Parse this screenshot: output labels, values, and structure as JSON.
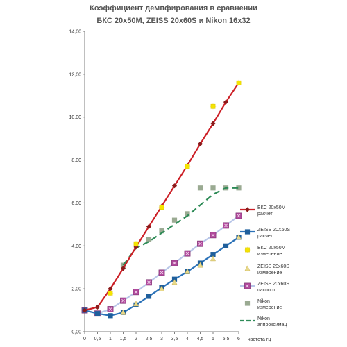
{
  "chart_data": {
    "type": "line",
    "title": "Коэффициент демпфирования в сравнении",
    "subtitle": "БКС 20х50М,  ZEISS 20х60S и Nikon 16x32",
    "xlabel": "частота гц",
    "ylabel": "",
    "xlim": [
      0,
      6
    ],
    "ylim": [
      0,
      14
    ],
    "x_ticks": [
      "0",
      "0,5",
      "1",
      "1,5",
      "2",
      "2,5",
      "3",
      "3,5",
      "4",
      "4,5",
      "5",
      "5,5",
      "6"
    ],
    "y_ticks": [
      "0,00",
      "2,00",
      "4,00",
      "6,00",
      "8,00",
      "10,00",
      "12,00",
      "14,00"
    ],
    "grid": false,
    "legend_position": "right",
    "series": [
      {
        "name_line1": "БКС 20х50М",
        "name_line2": "расчет",
        "style": "line-marker",
        "marker": "diamond",
        "color": "#cc1f26",
        "marker_color": "#8b1a1a",
        "x": [
          0,
          0.5,
          1,
          1.5,
          2,
          2.5,
          3,
          3.5,
          4,
          4.5,
          5,
          5.5,
          6
        ],
        "y": [
          1.0,
          1.15,
          2.0,
          2.95,
          3.95,
          4.9,
          5.85,
          6.8,
          7.75,
          8.75,
          9.7,
          10.7,
          11.6
        ]
      },
      {
        "name_line1": "ZEISS 20X60S",
        "name_line2": "расчет",
        "style": "line-marker",
        "marker": "square",
        "color": "#2b72b8",
        "marker_color": "#1f5f9c",
        "x": [
          0,
          0.5,
          1,
          1.5,
          2,
          2.5,
          3,
          3.5,
          4,
          4.5,
          5,
          5.5,
          6
        ],
        "y": [
          1.0,
          0.85,
          0.75,
          0.9,
          1.25,
          1.65,
          2.05,
          2.45,
          2.8,
          3.2,
          3.6,
          4.0,
          4.4
        ]
      },
      {
        "name_line1": "БКС 20х50М",
        "name_line2": "измерение",
        "style": "marker",
        "marker": "star",
        "color": "#f5e400",
        "x": [
          1,
          2,
          3,
          4,
          5,
          6
        ],
        "y": [
          1.8,
          4.1,
          5.8,
          7.7,
          10.5,
          11.6
        ]
      },
      {
        "name_line1": "ZEISS 20x60S",
        "name_line2": "измерение",
        "style": "marker",
        "marker": "triangle",
        "color": "#e8d98a",
        "x": [
          1.5,
          2,
          3,
          3.5,
          4,
          4.5,
          5,
          6
        ],
        "y": [
          0.9,
          1.3,
          2.0,
          2.3,
          2.8,
          3.1,
          3.4,
          4.4
        ]
      },
      {
        "name_line1": "ZEISS 20x60S",
        "name_line2": "паспорт",
        "style": "line-marker",
        "marker": "square-x",
        "color": "#b8c6e8",
        "marker_color": "#b04a9c",
        "x": [
          0,
          0.5,
          1,
          1.5,
          2,
          2.5,
          3,
          3.5,
          4,
          4.5,
          5,
          5.5,
          6
        ],
        "y": [
          1.0,
          0.85,
          1.05,
          1.45,
          1.85,
          2.3,
          2.75,
          3.2,
          3.65,
          4.1,
          4.5,
          4.95,
          5.4
        ]
      },
      {
        "name_line1": "Nikon",
        "name_line2": "измерение",
        "style": "marker",
        "marker": "square",
        "color": "#9aaa92",
        "x": [
          1.5,
          2.5,
          3,
          3.5,
          4,
          4.5,
          5,
          5.5,
          6
        ],
        "y": [
          3.1,
          4.3,
          4.7,
          5.2,
          5.5,
          6.7,
          6.7,
          6.7,
          6.7
        ]
      },
      {
        "name_line1": "Nikon",
        "name_line2": "аппроксимац",
        "style": "dashed",
        "marker": "none",
        "color": "#2e8b57",
        "x": [
          1.5,
          2,
          2.5,
          3,
          3.5,
          4,
          4.5,
          5,
          5.5,
          6
        ],
        "y": [
          3.1,
          3.9,
          4.2,
          4.6,
          5.0,
          5.4,
          5.9,
          6.4,
          6.7,
          6.7
        ]
      }
    ]
  }
}
